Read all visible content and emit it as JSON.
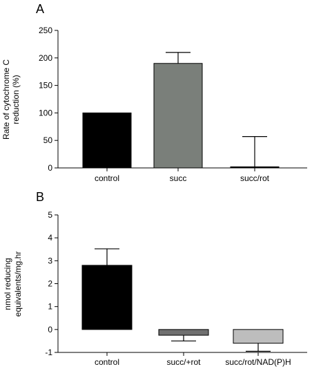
{
  "chart_data": [
    {
      "panel": "A",
      "type": "bar",
      "ylabel_lines": [
        "Rate of cytochrome C",
        "reduction (%)"
      ],
      "categories": [
        "control",
        "succ",
        "succ/rot"
      ],
      "values": [
        100,
        190,
        2
      ],
      "errors": [
        0,
        20,
        55
      ],
      "colors": [
        "#000000",
        "#7a7f7a",
        "#000000"
      ],
      "ylim": [
        0,
        250
      ],
      "yticks": [
        0,
        50,
        100,
        150,
        200,
        250
      ],
      "grid": false
    },
    {
      "panel": "B",
      "type": "bar",
      "ylabel_lines": [
        "nmol reducing",
        "equivalents/mg.hr"
      ],
      "categories": [
        "control",
        "succ/+rot",
        "succ/rot/NAD(P)H"
      ],
      "values": [
        2.8,
        -0.25,
        -0.6
      ],
      "errors": [
        0.72,
        0.25,
        0.35
      ],
      "colors": [
        "#000000",
        "#707070",
        "#bdbdbd"
      ],
      "ylim": [
        -1,
        5
      ],
      "yticks": [
        -1,
        0,
        1,
        2,
        3,
        4,
        5
      ],
      "grid": false
    }
  ]
}
